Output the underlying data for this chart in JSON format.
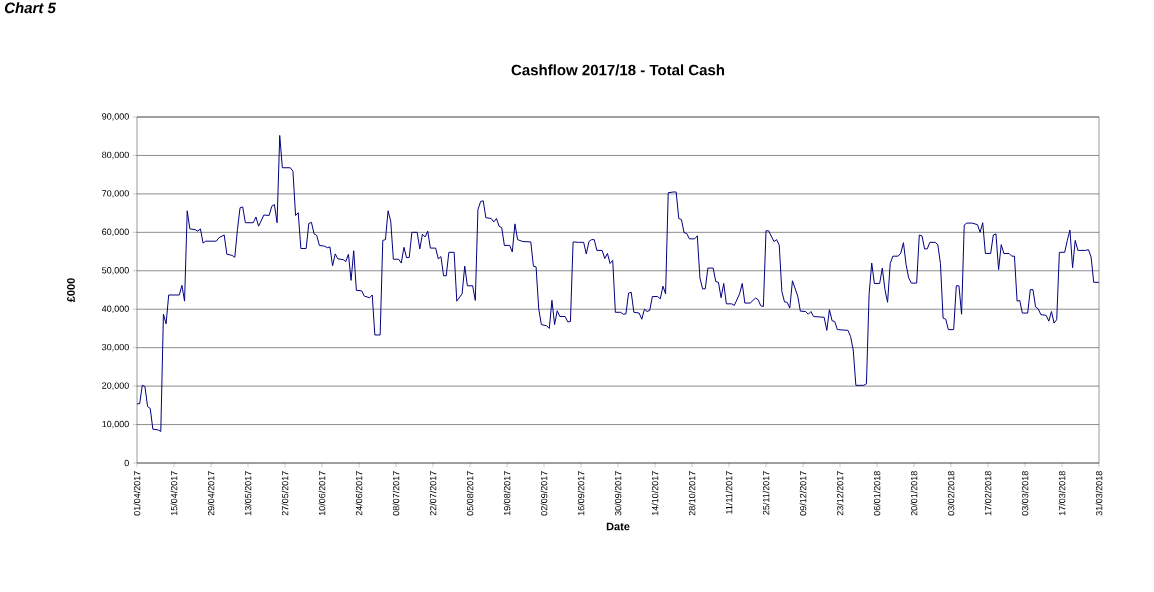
{
  "chart_data": {
    "type": "line",
    "title": "Cashflow 2017/18 - Total Cash",
    "xlabel": "Date",
    "ylabel": "£000",
    "annotations": [
      "Chart 5"
    ],
    "color": "#000080",
    "line_style": "solid",
    "grid": "y",
    "xlim": [
      "2017-04-01",
      "2018-03-31"
    ],
    "ylim": [
      0,
      90000
    ],
    "yticks": [
      0,
      {
        "value": 10000,
        "label": "10,000"
      },
      {
        "value": 20000,
        "label": "20,000"
      },
      {
        "value": 30000,
        "label": "30,000"
      },
      {
        "value": 40000,
        "label": "40,000"
      },
      {
        "value": 50000,
        "label": "50,000"
      },
      {
        "value": 60000,
        "label": "60,000"
      },
      {
        "value": 70000,
        "label": "70,000"
      },
      {
        "value": 80000,
        "label": "80,000"
      },
      {
        "value": 90000,
        "label": "90,000"
      }
    ],
    "xticks": [
      {
        "value": "2017-04-01",
        "label": "01/04/2017"
      },
      {
        "value": "2017-04-15",
        "label": "15/04/2017"
      },
      {
        "value": "2017-04-29",
        "label": "29/04/2017"
      },
      {
        "value": "2017-05-13",
        "label": "13/05/2017"
      },
      {
        "value": "2017-05-27",
        "label": "27/05/2017"
      },
      {
        "value": "2017-06-10",
        "label": "10/06/2017"
      },
      {
        "value": "2017-06-24",
        "label": "24/06/2017"
      },
      {
        "value": "2017-07-08",
        "label": "08/07/2017"
      },
      {
        "value": "2017-07-22",
        "label": "22/07/2017"
      },
      {
        "value": "2017-08-05",
        "label": "05/08/2017"
      },
      {
        "value": "2017-08-19",
        "label": "19/08/2017"
      },
      {
        "value": "2017-09-02",
        "label": "02/09/2017"
      },
      {
        "value": "2017-09-16",
        "label": "16/09/2017"
      },
      {
        "value": "2017-09-30",
        "label": "30/09/2017"
      },
      {
        "value": "2017-10-14",
        "label": "14/10/2017"
      },
      {
        "value": "2017-10-28",
        "label": "28/10/2017"
      },
      {
        "value": "2017-11-11",
        "label": "11/11/2017"
      },
      {
        "value": "2017-11-25",
        "label": "25/11/2017"
      },
      {
        "value": "2017-12-09",
        "label": "09/12/2017"
      },
      {
        "value": "2017-12-23",
        "label": "23/12/2017"
      },
      {
        "value": "2018-01-06",
        "label": "06/01/2018"
      },
      {
        "value": "2018-01-20",
        "label": "20/01/2018"
      },
      {
        "value": "2018-02-03",
        "label": "03/02/2018"
      },
      {
        "value": "2018-02-17",
        "label": "17/02/2018"
      },
      {
        "value": "2018-03-03",
        "label": "03/03/2018"
      },
      {
        "value": "2018-03-17",
        "label": "17/03/2018"
      },
      {
        "value": "2018-03-31",
        "label": "31/03/2018"
      }
    ],
    "x": [
      "2017-04-01",
      "2017-04-02",
      "2017-04-03",
      "2017-04-04",
      "2017-04-05",
      "2017-04-06",
      "2017-04-07",
      "2017-04-09",
      "2017-04-10",
      "2017-04-11",
      "2017-04-12",
      "2017-04-13",
      "2017-04-17",
      "2017-04-18",
      "2017-04-19",
      "2017-04-20",
      "2017-04-21",
      "2017-04-23",
      "2017-04-24",
      "2017-04-25",
      "2017-04-26",
      "2017-04-27",
      "2017-05-01",
      "2017-05-02",
      "2017-05-04",
      "2017-05-05",
      "2017-05-07",
      "2017-05-08",
      "2017-05-09",
      "2017-05-10",
      "2017-05-11",
      "2017-05-12",
      "2017-05-15",
      "2017-05-16",
      "2017-05-17",
      "2017-05-19",
      "2017-05-21",
      "2017-05-22",
      "2017-05-23",
      "2017-05-24",
      "2017-05-25",
      "2017-05-26",
      "2017-05-29",
      "2017-05-30",
      "2017-05-31",
      "2017-06-01",
      "2017-06-02",
      "2017-06-04",
      "2017-06-05",
      "2017-06-06",
      "2017-06-07",
      "2017-06-08",
      "2017-06-09",
      "2017-06-11",
      "2017-06-12",
      "2017-06-13",
      "2017-06-14",
      "2017-06-15",
      "2017-06-16",
      "2017-06-18",
      "2017-06-19",
      "2017-06-20",
      "2017-06-21",
      "2017-06-22",
      "2017-06-23",
      "2017-06-25",
      "2017-06-26",
      "2017-06-28",
      "2017-06-29",
      "2017-06-30",
      "2017-07-02",
      "2017-07-03",
      "2017-07-04",
      "2017-07-05",
      "2017-07-06",
      "2017-07-07",
      "2017-07-09",
      "2017-07-10",
      "2017-07-11",
      "2017-07-12",
      "2017-07-13",
      "2017-07-14",
      "2017-07-16",
      "2017-07-17",
      "2017-07-18",
      "2017-07-19",
      "2017-07-20",
      "2017-07-21",
      "2017-07-23",
      "2017-07-24",
      "2017-07-25",
      "2017-07-26",
      "2017-07-27",
      "2017-07-28",
      "2017-07-30",
      "2017-07-31",
      "2017-08-02",
      "2017-08-03",
      "2017-08-04",
      "2017-08-06",
      "2017-08-07",
      "2017-08-08",
      "2017-08-09",
      "2017-08-10",
      "2017-08-11",
      "2017-08-13",
      "2017-08-14",
      "2017-08-15",
      "2017-08-16",
      "2017-08-17",
      "2017-08-18",
      "2017-08-20",
      "2017-08-21",
      "2017-08-22",
      "2017-08-23",
      "2017-08-25",
      "2017-08-28",
      "2017-08-29",
      "2017-08-30",
      "2017-08-31",
      "2017-09-01",
      "2017-09-03",
      "2017-09-04",
      "2017-09-05",
      "2017-09-06",
      "2017-09-07",
      "2017-09-08",
      "2017-09-10",
      "2017-09-11",
      "2017-09-12",
      "2017-09-13",
      "2017-09-15",
      "2017-09-17",
      "2017-09-18",
      "2017-09-19",
      "2017-09-20",
      "2017-09-21",
      "2017-09-22",
      "2017-09-24",
      "2017-09-25",
      "2017-09-26",
      "2017-09-27",
      "2017-09-28",
      "2017-09-29",
      "2017-10-01",
      "2017-10-02",
      "2017-10-03",
      "2017-10-04",
      "2017-10-05",
      "2017-10-06",
      "2017-10-08",
      "2017-10-09",
      "2017-10-10",
      "2017-10-11",
      "2017-10-12",
      "2017-10-13",
      "2017-10-15",
      "2017-10-16",
      "2017-10-17",
      "2017-10-18",
      "2017-10-19",
      "2017-10-21",
      "2017-10-22",
      "2017-10-23",
      "2017-10-24",
      "2017-10-25",
      "2017-10-26",
      "2017-10-27",
      "2017-10-29",
      "2017-10-30",
      "2017-10-31",
      "2017-11-01",
      "2017-11-02",
      "2017-11-03",
      "2017-11-05",
      "2017-11-06",
      "2017-11-07",
      "2017-11-08",
      "2017-11-09",
      "2017-11-10",
      "2017-11-12",
      "2017-11-13",
      "2017-11-15",
      "2017-11-16",
      "2017-11-17",
      "2017-11-19",
      "2017-11-21",
      "2017-11-22",
      "2017-11-23",
      "2017-11-24",
      "2017-11-25",
      "2017-11-26",
      "2017-11-28",
      "2017-11-29",
      "2017-11-30",
      "2017-12-01",
      "2017-12-02",
      "2017-12-03",
      "2017-12-04",
      "2017-12-05",
      "2017-12-07",
      "2017-12-08",
      "2017-12-10",
      "2017-12-11",
      "2017-12-12",
      "2017-12-13",
      "2017-12-15",
      "2017-12-17",
      "2017-12-18",
      "2017-12-19",
      "2017-12-20",
      "2017-12-21",
      "2017-12-22",
      "2017-12-26",
      "2017-12-27",
      "2017-12-28",
      "2017-12-29",
      "2018-01-01",
      "2018-01-02",
      "2018-01-03",
      "2018-01-04",
      "2018-01-05",
      "2018-01-07",
      "2018-01-08",
      "2018-01-09",
      "2018-01-10",
      "2018-01-11",
      "2018-01-12",
      "2018-01-14",
      "2018-01-15",
      "2018-01-16",
      "2018-01-17",
      "2018-01-18",
      "2018-01-19",
      "2018-01-21",
      "2018-01-22",
      "2018-01-23",
      "2018-01-24",
      "2018-01-25",
      "2018-01-26",
      "2018-01-28",
      "2018-01-29",
      "2018-01-30",
      "2018-01-31",
      "2018-02-01",
      "2018-02-02",
      "2018-02-04",
      "2018-02-05",
      "2018-02-06",
      "2018-02-07",
      "2018-02-08",
      "2018-02-09",
      "2018-02-11",
      "2018-02-13",
      "2018-02-14",
      "2018-02-15",
      "2018-02-16",
      "2018-02-18",
      "2018-02-19",
      "2018-02-20",
      "2018-02-21",
      "2018-02-22",
      "2018-02-23",
      "2018-02-25",
      "2018-02-26",
      "2018-02-27",
      "2018-02-28",
      "2018-03-01",
      "2018-03-02",
      "2018-03-04",
      "2018-03-05",
      "2018-03-06",
      "2018-03-07",
      "2018-03-08",
      "2018-03-09",
      "2018-03-11",
      "2018-03-12",
      "2018-03-13",
      "2018-03-14",
      "2018-03-15",
      "2018-03-16",
      "2018-03-18",
      "2018-03-19",
      "2018-03-20",
      "2018-03-21",
      "2018-03-22",
      "2018-03-23",
      "2018-03-26",
      "2018-03-27",
      "2018-03-28",
      "2018-03-29",
      "2018-03-31"
    ],
    "values": [
      15400,
      15400,
      20200,
      19900,
      14700,
      14200,
      8800,
      8600,
      8200,
      38700,
      36200,
      43700,
      43700,
      46200,
      42100,
      65600,
      60900,
      60700,
      60300,
      60900,
      57200,
      57700,
      57700,
      58600,
      59300,
      54300,
      54000,
      53500,
      60700,
      66400,
      66600,
      62500,
      62500,
      64000,
      61600,
      64500,
      64400,
      66800,
      67200,
      62500,
      85200,
      76800,
      76800,
      75900,
      64400,
      65100,
      55800,
      55800,
      62300,
      62600,
      59600,
      59200,
      56600,
      56400,
      56000,
      56200,
      51300,
      54400,
      53100,
      52900,
      52400,
      54300,
      47500,
      55200,
      44900,
      44800,
      43400,
      43000,
      43700,
      33300,
      33300,
      57900,
      58100,
      65600,
      62900,
      53000,
      53000,
      52000,
      56100,
      53400,
      53500,
      60000,
      60000,
      55700,
      59500,
      58800,
      60300,
      55900,
      55900,
      53100,
      53700,
      48700,
      48700,
      54800,
      54800,
      42100,
      44000,
      51200,
      46100,
      46100,
      42300,
      65900,
      68000,
      68200,
      63800,
      63600,
      62700,
      63600,
      61600,
      61200,
      56600,
      56600,
      54900,
      62200,
      58100,
      57600,
      57500,
      51200,
      51000,
      40100,
      36000,
      35700,
      35000,
      42300,
      36000,
      39600,
      38100,
      38100,
      36700,
      36800,
      57500,
      57400,
      57400,
      54400,
      57600,
      58100,
      58100,
      55300,
      55300,
      53200,
      54500,
      51900,
      52700,
      39200,
      39200,
      38700,
      38800,
      44200,
      44400,
      39200,
      39000,
      37400,
      40000,
      39400,
      39700,
      43300,
      43300,
      42700,
      46000,
      44000,
      70300,
      70500,
      70500,
      63600,
      63300,
      59900,
      59700,
      58300,
      58300,
      59100,
      48100,
      45300,
      45300,
      50700,
      50700,
      47200,
      47000,
      43000,
      46700,
      41400,
      41400,
      41000,
      44000,
      46700,
      41600,
      41600,
      42900,
      42500,
      40900,
      40700,
      60400,
      60400,
      57600,
      58100,
      56700,
      44600,
      41900,
      41800,
      40300,
      47400,
      43400,
      39500,
      39400,
      38700,
      39400,
      38100,
      38000,
      37900,
      34500,
      39900,
      37000,
      36800,
      34700,
      34500,
      32900,
      29400,
      20200,
      20200,
      20600,
      43800,
      52000,
      46700,
      46700,
      50700,
      45100,
      41800,
      51900,
      53800,
      53800,
      54600,
      57300,
      51600,
      48100,
      46800,
      46800,
      59300,
      59100,
      55700,
      55700,
      57400,
      57400,
      56800,
      51900,
      37700,
      37400,
      34700,
      34700,
      46100,
      46100,
      38700,
      61900,
      62400,
      62400,
      62000,
      60000,
      62500,
      54500,
      54500,
      59300,
      59600,
      50300,
      56800,
      54500,
      54500,
      53800,
      53800,
      42100,
      42300,
      39000,
      39000,
      45100,
      45100,
      40600,
      40100,
      38600,
      38400,
      36900,
      39400,
      36400,
      37300,
      54800,
      54800,
      57900,
      60600,
      50800,
      57900,
      55300,
      55300,
      55500,
      53600,
      47000,
      47000
    ]
  }
}
